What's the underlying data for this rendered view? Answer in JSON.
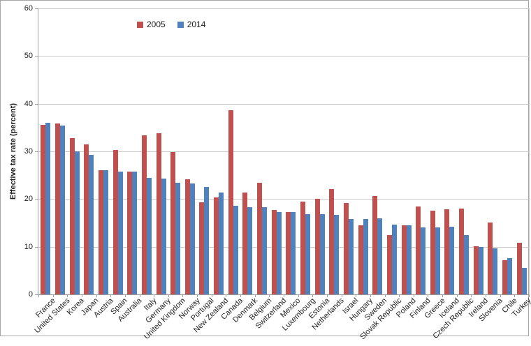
{
  "chart_data": {
    "type": "bar",
    "title": "",
    "xlabel": "",
    "ylabel": "Effective tax rate (percent)",
    "ylim": [
      0,
      60
    ],
    "yticks": [
      0,
      10,
      20,
      30,
      40,
      50,
      60
    ],
    "grid": true,
    "legend_position": "top-inside-left-of-center",
    "categories": [
      "France",
      "United States",
      "Korea",
      "Japan",
      "Austria",
      "Spain",
      "Australia",
      "Italy",
      "Germany",
      "United Kingdom",
      "Norway",
      "Portugal",
      "New Zealand",
      "Canada",
      "Denmark",
      "Belgium",
      "Switzerland",
      "Mexico",
      "Luxembourg",
      "Estonia",
      "Netherlands",
      "Israel",
      "Hungary",
      "Sweden",
      "Slovak Republic",
      "Poland",
      "Finland",
      "Greece",
      "Iceland",
      "Czech Republic",
      "Ireland",
      "Slovenia",
      "Chile",
      "Turkey"
    ],
    "series": [
      {
        "name": "2005",
        "color": "#C0504D",
        "values": [
          35.5,
          35.8,
          32.8,
          31.4,
          26.1,
          30.3,
          25.7,
          33.4,
          33.8,
          29.8,
          24.2,
          19.3,
          20.3,
          38.6,
          21.4,
          23.4,
          17.7,
          17.2,
          19.4,
          20.0,
          22.1,
          19.2,
          14.5,
          20.7,
          12.5,
          14.5,
          18.4,
          17.5,
          17.9,
          18.0,
          10.1,
          15.1,
          7.2,
          10.8
        ]
      },
      {
        "name": "2014",
        "color": "#4F81BD",
        "values": [
          36.0,
          35.4,
          30.0,
          29.2,
          26.0,
          25.8,
          25.7,
          24.4,
          24.3,
          23.4,
          23.2,
          22.5,
          21.4,
          18.6,
          18.3,
          18.3,
          17.3,
          17.2,
          16.9,
          16.8,
          16.7,
          15.8,
          15.8,
          16.0,
          14.7,
          14.5,
          14.1,
          14.1,
          14.2,
          12.5,
          10.0,
          9.7,
          7.6,
          5.6
        ]
      }
    ],
    "colors": {
      "gridline": "#c9c9c9",
      "axis": "#9c9c9c",
      "text": "#1f1f1f",
      "frame_border": "#a6a6a6"
    }
  }
}
